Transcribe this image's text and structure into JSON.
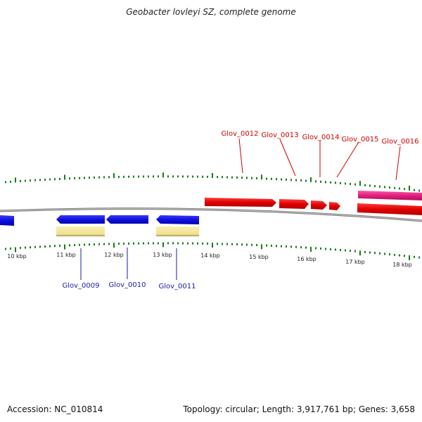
{
  "title": "Geobacter lovleyi SZ, complete genome",
  "footer": {
    "accession": "Accession: NC_010814",
    "summary": "Topology: circular; Length: 3,917,761 bp; Genes: 3,658"
  },
  "colors": {
    "tick": "#1a7a1a",
    "backbone": "#777777",
    "forward_gene": "#e00000",
    "reverse_gene": "#1010e0",
    "pink_gene": "#e0207f",
    "cds_feature": "#f0e090",
    "label_red": "#cc0000",
    "label_blue": "#1a1aa8"
  },
  "scale": {
    "labels": [
      "10 kbp",
      "11 kbp",
      "12 kbp",
      "13 kbp",
      "14 kbp",
      "15 kbp",
      "16 kbp",
      "17 kbp",
      "18 kbp"
    ]
  },
  "genes_forward": [
    {
      "label": "Glov_0012"
    },
    {
      "label": "Glov_0013"
    },
    {
      "label": "Glov_0014"
    },
    {
      "label": "Glov_0015"
    },
    {
      "label": "Glov_0016"
    }
  ],
  "genes_reverse": [
    {
      "label": "Glov_0009"
    },
    {
      "label": "Glov_0010"
    },
    {
      "label": "Glov_0011"
    }
  ]
}
